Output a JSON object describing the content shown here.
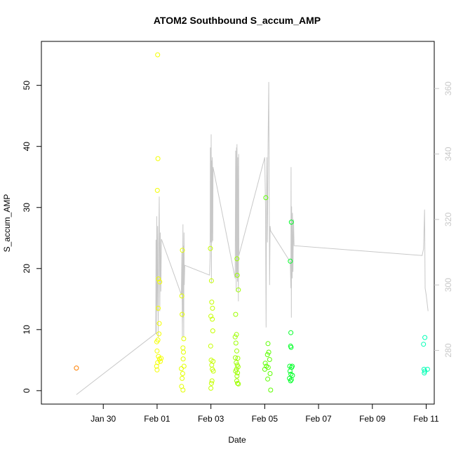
{
  "chart_data": {
    "type": "scatter",
    "title": "ATOM2 Southbound S_accum_AMP",
    "xlabel": "Date",
    "ylabel": "S_accum_AMP",
    "x_domain_days": [
      -2.3,
      12.3
    ],
    "x_ticks": [
      {
        "day": 0,
        "label": "Jan 30"
      },
      {
        "day": 2,
        "label": "Feb 01"
      },
      {
        "day": 4,
        "label": "Feb 03"
      },
      {
        "day": 6,
        "label": "Feb 05"
      },
      {
        "day": 8,
        "label": "Feb 07"
      },
      {
        "day": 10,
        "label": "Feb 09"
      },
      {
        "day": 12,
        "label": "Feb 11"
      }
    ],
    "ylim": [
      -2.2,
      57.2
    ],
    "y_ticks": [
      0,
      10,
      20,
      30,
      40,
      50
    ],
    "y2_label": "",
    "y2lim": [
      263.6,
      374.4
    ],
    "y2_ticks": [
      280,
      300,
      320,
      340,
      360
    ],
    "grid": false,
    "legend": "none",
    "series_colors": {
      "points": "colored by date (orange → yellow → green → cyan)",
      "line": "#c8c8c8"
    },
    "points": [
      {
        "x": -1.0,
        "y": 3.7,
        "color": "#ff8000"
      },
      {
        "x": 1.98,
        "y": 4.0,
        "color": "#f4ff00"
      },
      {
        "x": 2.0,
        "y": 3.4,
        "color": "#f4ff00"
      },
      {
        "x": 2.02,
        "y": 55.0,
        "color": "#f4ff00"
      },
      {
        "x": 2.03,
        "y": 38.0,
        "color": "#f4ff00"
      },
      {
        "x": 2.01,
        "y": 32.8,
        "color": "#f4ff00"
      },
      {
        "x": 2.05,
        "y": 18.3,
        "color": "#f4ff00"
      },
      {
        "x": 2.1,
        "y": 17.8,
        "color": "#f4ff00"
      },
      {
        "x": 2.04,
        "y": 13.5,
        "color": "#f4ff00"
      },
      {
        "x": 2.08,
        "y": 11.0,
        "color": "#f4ff00"
      },
      {
        "x": 2.07,
        "y": 9.3,
        "color": "#f4ff00"
      },
      {
        "x": 2.03,
        "y": 8.3,
        "color": "#f4ff00"
      },
      {
        "x": 1.99,
        "y": 8.0,
        "color": "#f4ff00"
      },
      {
        "x": 2.0,
        "y": 6.5,
        "color": "#f4ff00"
      },
      {
        "x": 2.05,
        "y": 5.6,
        "color": "#f4ff00"
      },
      {
        "x": 2.09,
        "y": 5.2,
        "color": "#f4ff00"
      },
      {
        "x": 2.12,
        "y": 4.8,
        "color": "#f4ff00"
      },
      {
        "x": 2.02,
        "y": 4.6,
        "color": "#f4ff00"
      },
      {
        "x": 2.15,
        "y": 5.3,
        "color": "#f4ff00"
      },
      {
        "x": 2.9,
        "y": 3.6,
        "color": "#e4ff00"
      },
      {
        "x": 2.92,
        "y": 15.5,
        "color": "#e4ff00"
      },
      {
        "x": 2.94,
        "y": 23.0,
        "color": "#e4ff00"
      },
      {
        "x": 2.93,
        "y": 12.5,
        "color": "#e4ff00"
      },
      {
        "x": 2.99,
        "y": 8.5,
        "color": "#e4ff00"
      },
      {
        "x": 2.96,
        "y": 7.0,
        "color": "#e4ff00"
      },
      {
        "x": 2.98,
        "y": 6.3,
        "color": "#e4ff00"
      },
      {
        "x": 2.97,
        "y": 5.2,
        "color": "#e4ff00"
      },
      {
        "x": 3.0,
        "y": 4.0,
        "color": "#e4ff00"
      },
      {
        "x": 2.95,
        "y": 2.8,
        "color": "#e4ff00"
      },
      {
        "x": 2.93,
        "y": 2.0,
        "color": "#e4ff00"
      },
      {
        "x": 2.91,
        "y": 0.7,
        "color": "#e4ff00"
      },
      {
        "x": 2.96,
        "y": 0.1,
        "color": "#e4ff00"
      },
      {
        "x": 3.98,
        "y": 23.3,
        "color": "#c6ff00"
      },
      {
        "x": 4.02,
        "y": 18.0,
        "color": "#c6ff00"
      },
      {
        "x": 4.03,
        "y": 14.5,
        "color": "#c6ff00"
      },
      {
        "x": 4.06,
        "y": 13.5,
        "color": "#c6ff00"
      },
      {
        "x": 4.0,
        "y": 12.2,
        "color": "#c6ff00"
      },
      {
        "x": 4.05,
        "y": 11.7,
        "color": "#c6ff00"
      },
      {
        "x": 4.07,
        "y": 9.8,
        "color": "#c6ff00"
      },
      {
        "x": 3.99,
        "y": 7.3,
        "color": "#c6ff00"
      },
      {
        "x": 4.01,
        "y": 5.0,
        "color": "#c6ff00"
      },
      {
        "x": 4.08,
        "y": 4.8,
        "color": "#c6ff00"
      },
      {
        "x": 4.03,
        "y": 4.2,
        "color": "#c6ff00"
      },
      {
        "x": 4.05,
        "y": 3.5,
        "color": "#c6ff00"
      },
      {
        "x": 4.09,
        "y": 3.2,
        "color": "#c6ff00"
      },
      {
        "x": 4.04,
        "y": 1.6,
        "color": "#c6ff00"
      },
      {
        "x": 4.02,
        "y": 1.2,
        "color": "#c6ff00"
      },
      {
        "x": 4.0,
        "y": 0.4,
        "color": "#c6ff00"
      },
      {
        "x": 4.92,
        "y": 12.5,
        "color": "#9dff00"
      },
      {
        "x": 4.97,
        "y": 21.6,
        "color": "#9dff00"
      },
      {
        "x": 4.98,
        "y": 18.9,
        "color": "#9dff00"
      },
      {
        "x": 5.02,
        "y": 16.5,
        "color": "#9dff00"
      },
      {
        "x": 4.95,
        "y": 9.2,
        "color": "#9dff00"
      },
      {
        "x": 4.9,
        "y": 8.8,
        "color": "#9dff00"
      },
      {
        "x": 4.93,
        "y": 7.8,
        "color": "#9dff00"
      },
      {
        "x": 4.96,
        "y": 6.5,
        "color": "#9dff00"
      },
      {
        "x": 4.91,
        "y": 5.4,
        "color": "#9dff00"
      },
      {
        "x": 5.0,
        "y": 5.3,
        "color": "#9dff00"
      },
      {
        "x": 4.94,
        "y": 4.6,
        "color": "#9dff00"
      },
      {
        "x": 4.98,
        "y": 4.2,
        "color": "#9dff00"
      },
      {
        "x": 5.01,
        "y": 3.9,
        "color": "#9dff00"
      },
      {
        "x": 4.95,
        "y": 3.5,
        "color": "#9dff00"
      },
      {
        "x": 4.92,
        "y": 3.2,
        "color": "#9dff00"
      },
      {
        "x": 4.99,
        "y": 2.9,
        "color": "#9dff00"
      },
      {
        "x": 4.97,
        "y": 2.4,
        "color": "#9dff00"
      },
      {
        "x": 4.96,
        "y": 1.6,
        "color": "#9dff00"
      },
      {
        "x": 4.99,
        "y": 1.2,
        "color": "#9dff00"
      },
      {
        "x": 5.02,
        "y": 1.1,
        "color": "#9dff00"
      },
      {
        "x": 6.04,
        "y": 31.6,
        "color": "#5cff00"
      },
      {
        "x": 6.12,
        "y": 7.7,
        "color": "#5cff00"
      },
      {
        "x": 6.15,
        "y": 6.3,
        "color": "#5cff00"
      },
      {
        "x": 6.1,
        "y": 5.9,
        "color": "#5cff00"
      },
      {
        "x": 6.18,
        "y": 5.1,
        "color": "#5cff00"
      },
      {
        "x": 6.02,
        "y": 4.5,
        "color": "#5cff00"
      },
      {
        "x": 6.06,
        "y": 4.0,
        "color": "#5cff00"
      },
      {
        "x": 6.13,
        "y": 3.8,
        "color": "#5cff00"
      },
      {
        "x": 6.0,
        "y": 3.5,
        "color": "#5cff00"
      },
      {
        "x": 6.2,
        "y": 2.8,
        "color": "#5cff00"
      },
      {
        "x": 6.11,
        "y": 1.9,
        "color": "#5cff00"
      },
      {
        "x": 6.22,
        "y": 0.1,
        "color": "#5cff00"
      },
      {
        "x": 6.95,
        "y": 21.2,
        "color": "#00ff27"
      },
      {
        "x": 6.99,
        "y": 27.6,
        "color": "#00ff27"
      },
      {
        "x": 6.97,
        "y": 9.5,
        "color": "#00ff27"
      },
      {
        "x": 6.96,
        "y": 7.3,
        "color": "#00ff27"
      },
      {
        "x": 6.98,
        "y": 7.1,
        "color": "#00ff27"
      },
      {
        "x": 6.93,
        "y": 4.0,
        "color": "#00ff27"
      },
      {
        "x": 7.0,
        "y": 3.8,
        "color": "#00ff27"
      },
      {
        "x": 7.02,
        "y": 4.0,
        "color": "#00ff27"
      },
      {
        "x": 6.94,
        "y": 3.2,
        "color": "#00ff27"
      },
      {
        "x": 6.97,
        "y": 2.7,
        "color": "#00ff27"
      },
      {
        "x": 7.03,
        "y": 2.5,
        "color": "#00ff27"
      },
      {
        "x": 6.92,
        "y": 2.0,
        "color": "#00ff27"
      },
      {
        "x": 6.96,
        "y": 1.6,
        "color": "#00ff27"
      },
      {
        "x": 6.99,
        "y": 1.8,
        "color": "#00ff27"
      },
      {
        "x": 11.95,
        "y": 8.7,
        "color": "#00ffb5"
      },
      {
        "x": 11.9,
        "y": 7.6,
        "color": "#00ffb5"
      },
      {
        "x": 11.92,
        "y": 3.5,
        "color": "#00ffb5"
      },
      {
        "x": 11.95,
        "y": 3.2,
        "color": "#00ffb5"
      },
      {
        "x": 11.93,
        "y": 2.9,
        "color": "#00ffb5"
      },
      {
        "x": 12.05,
        "y": 3.5,
        "color": "#00ffb5"
      }
    ],
    "line": [
      [
        -1.0,
        266.5
      ],
      [
        1.95,
        285.2
      ],
      [
        1.96,
        313.8
      ],
      [
        1.97,
        285.0
      ],
      [
        1.98,
        306.0
      ],
      [
        1.99,
        321.0
      ],
      [
        2.0,
        292.0
      ],
      [
        2.02,
        318.0
      ],
      [
        2.04,
        284.0
      ],
      [
        2.06,
        310.0
      ],
      [
        2.08,
        327.0
      ],
      [
        2.1,
        292.0
      ],
      [
        2.12,
        316.0
      ],
      [
        2.14,
        298.0
      ],
      [
        2.16,
        314.0
      ],
      [
        2.9,
        297.0
      ],
      [
        2.92,
        310.0
      ],
      [
        2.94,
        284.0
      ],
      [
        2.95,
        306.0
      ],
      [
        2.96,
        318.5
      ],
      [
        2.97,
        290.0
      ],
      [
        2.98,
        312.0
      ],
      [
        2.99,
        284.0
      ],
      [
        3.0,
        316.0
      ],
      [
        3.01,
        300.0
      ],
      [
        3.03,
        306.0
      ],
      [
        3.95,
        303.0
      ],
      [
        3.97,
        308.5
      ],
      [
        3.98,
        342.0
      ],
      [
        4.0,
        313.0
      ],
      [
        4.01,
        346.0
      ],
      [
        4.02,
        300.5
      ],
      [
        4.03,
        338.0
      ],
      [
        4.04,
        313.0
      ],
      [
        4.05,
        339.0
      ],
      [
        4.06,
        335.0
      ],
      [
        4.07,
        313.5
      ],
      [
        4.08,
        336.0
      ],
      [
        4.9,
        302.0
      ],
      [
        4.92,
        341.0
      ],
      [
        4.94,
        298.0
      ],
      [
        4.95,
        342.0
      ],
      [
        4.96,
        302.5
      ],
      [
        4.97,
        343.0
      ],
      [
        4.99,
        301.0
      ],
      [
        5.0,
        339.0
      ],
      [
        5.02,
        295.0
      ],
      [
        5.03,
        340.0
      ],
      [
        5.04,
        309.0
      ],
      [
        6.0,
        339.0
      ],
      [
        6.03,
        323.0
      ],
      [
        6.05,
        287.0
      ],
      [
        6.06,
        314.0
      ],
      [
        6.08,
        339.0
      ],
      [
        6.1,
        313.0
      ],
      [
        6.12,
        341.0
      ],
      [
        6.15,
        362.0
      ],
      [
        6.18,
        300.0
      ],
      [
        6.2,
        318.0
      ],
      [
        6.22,
        316.5
      ],
      [
        6.95,
        307.0
      ],
      [
        6.97,
        299.0
      ],
      [
        6.98,
        336.0
      ],
      [
        6.99,
        290.0
      ],
      [
        7.0,
        324.0
      ],
      [
        7.02,
        302.0
      ],
      [
        7.03,
        322.0
      ],
      [
        7.05,
        304.0
      ],
      [
        7.07,
        320.0
      ],
      [
        7.09,
        312.0
      ],
      [
        11.85,
        309.0
      ],
      [
        11.9,
        311.0
      ],
      [
        11.94,
        323.0
      ],
      [
        11.96,
        299.0
      ],
      [
        12.0,
        297.0
      ],
      [
        12.07,
        292.0
      ]
    ]
  }
}
